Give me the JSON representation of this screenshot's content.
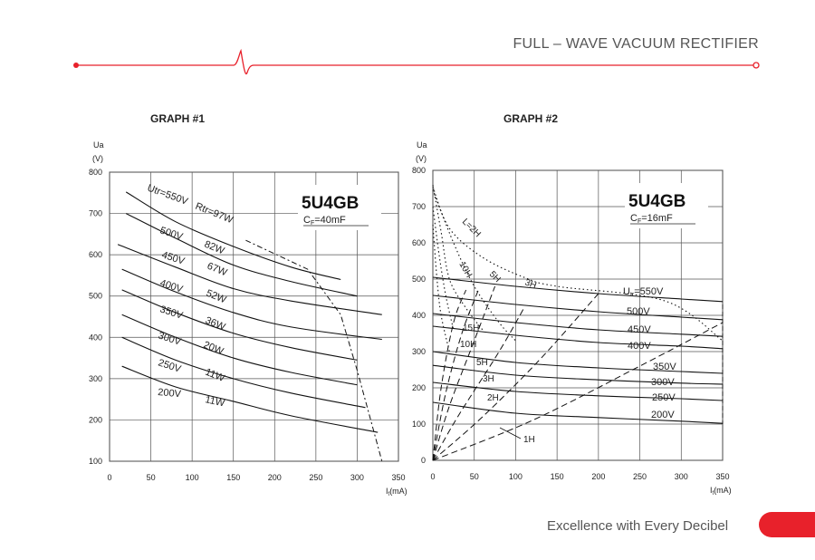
{
  "header": {
    "title": "FULL – WAVE VACUUM RECTIFIER"
  },
  "footer": {
    "tagline": "Excellence with Every Decibel"
  },
  "colors": {
    "accent": "#e8212b",
    "grid": "#333333",
    "curve": "#111111"
  },
  "chart_data": [
    {
      "type": "line",
      "title": "GRAPH #1",
      "tube": "5U4GB",
      "cf_label": "C",
      "cf_sub": "F",
      "cf_value": "=40mF",
      "ylabel_top": "Ua",
      "ylabel_unit": "(V)",
      "xlabel": "I",
      "xlabel_sub": "f",
      "xlabel_unit": "(mA)",
      "xlim": [
        0,
        350
      ],
      "ylim": [
        100,
        800
      ],
      "xticks": [
        0,
        50,
        100,
        150,
        200,
        250,
        300,
        350
      ],
      "yticks": [
        100,
        200,
        300,
        400,
        500,
        600,
        700,
        800
      ],
      "grid": true,
      "series": [
        {
          "name": "Utr=550V",
          "power": "Rtr=97W",
          "x": [
            20,
            80,
            150,
            220,
            280
          ],
          "y": [
            752,
            680,
            620,
            570,
            540
          ]
        },
        {
          "name": "500V",
          "power": "82W",
          "x": [
            20,
            80,
            150,
            220,
            300
          ],
          "y": [
            700,
            640,
            575,
            535,
            500
          ]
        },
        {
          "name": "450V",
          "power": "67W",
          "x": [
            10,
            80,
            150,
            220,
            330
          ],
          "y": [
            625,
            570,
            518,
            488,
            455
          ]
        },
        {
          "name": "400V",
          "power": "52W",
          "x": [
            15,
            80,
            150,
            220,
            330
          ],
          "y": [
            565,
            510,
            460,
            425,
            395
          ]
        },
        {
          "name": "350V",
          "power": "36W",
          "x": [
            15,
            80,
            150,
            220,
            300
          ],
          "y": [
            515,
            460,
            410,
            375,
            345
          ]
        },
        {
          "name": "300V",
          "power": "20W",
          "x": [
            15,
            80,
            150,
            220,
            300
          ],
          "y": [
            455,
            400,
            350,
            315,
            285
          ]
        },
        {
          "name": "250V",
          "power": "11W",
          "x": [
            15,
            80,
            150,
            220,
            310
          ],
          "y": [
            400,
            345,
            300,
            265,
            230
          ]
        },
        {
          "name": "200V",
          "power": "11W",
          "x": [
            15,
            80,
            150,
            220,
            325
          ],
          "y": [
            330,
            280,
            245,
            210,
            170
          ]
        }
      ],
      "limit_line": {
        "x": [
          165,
          240,
          280,
          300,
          330
        ],
        "y": [
          635,
          565,
          455,
          320,
          100
        ]
      }
    },
    {
      "type": "line",
      "title": "GRAPH #2",
      "tube": "5U4GB",
      "cf_label": "C",
      "cf_sub": "F",
      "cf_value": "=16mF",
      "ylabel_top": "Ua",
      "ylabel_unit": "(V)",
      "xlabel": "I",
      "xlabel_sub": "f",
      "xlabel_unit": "(mA)",
      "xlim": [
        0,
        350
      ],
      "ylim": [
        0,
        800
      ],
      "xticks": [
        0,
        50,
        100,
        150,
        200,
        250,
        300,
        350
      ],
      "yticks": [
        0,
        100,
        200,
        300,
        400,
        500,
        600,
        700,
        800
      ],
      "grid": true,
      "series": [
        {
          "name": "U",
          "name_sub": "tr",
          "name_suffix": "=550V",
          "x": [
            0,
            100,
            200,
            300,
            350
          ],
          "y": [
            505,
            480,
            460,
            445,
            438
          ]
        },
        {
          "name": "500V",
          "x": [
            0,
            100,
            200,
            300,
            350
          ],
          "y": [
            455,
            430,
            410,
            395,
            388
          ]
        },
        {
          "name": "450V",
          "x": [
            0,
            100,
            200,
            300,
            350
          ],
          "y": [
            405,
            380,
            360,
            348,
            342
          ]
        },
        {
          "name": "400V",
          "x": [
            0,
            100,
            200,
            300,
            350
          ],
          "y": [
            370,
            345,
            325,
            315,
            308
          ]
        },
        {
          "name": "350V",
          "x": [
            0,
            100,
            200,
            300,
            350
          ],
          "y": [
            300,
            270,
            255,
            245,
            240
          ]
        },
        {
          "name": "300V",
          "x": [
            0,
            100,
            200,
            300,
            350
          ],
          "y": [
            262,
            235,
            222,
            213,
            210
          ]
        },
        {
          "name": "250V",
          "x": [
            0,
            100,
            200,
            300,
            350
          ],
          "y": [
            215,
            190,
            178,
            170,
            165
          ]
        },
        {
          "name": "200V",
          "x": [
            0,
            100,
            200,
            300,
            350
          ],
          "y": [
            160,
            130,
            118,
            108,
            102
          ]
        }
      ],
      "inductance_labels": [
        "L=2H",
        "10H",
        "5H",
        "3H",
        "15H",
        "10H",
        "5H",
        "3H",
        "2H",
        "1H"
      ]
    }
  ]
}
